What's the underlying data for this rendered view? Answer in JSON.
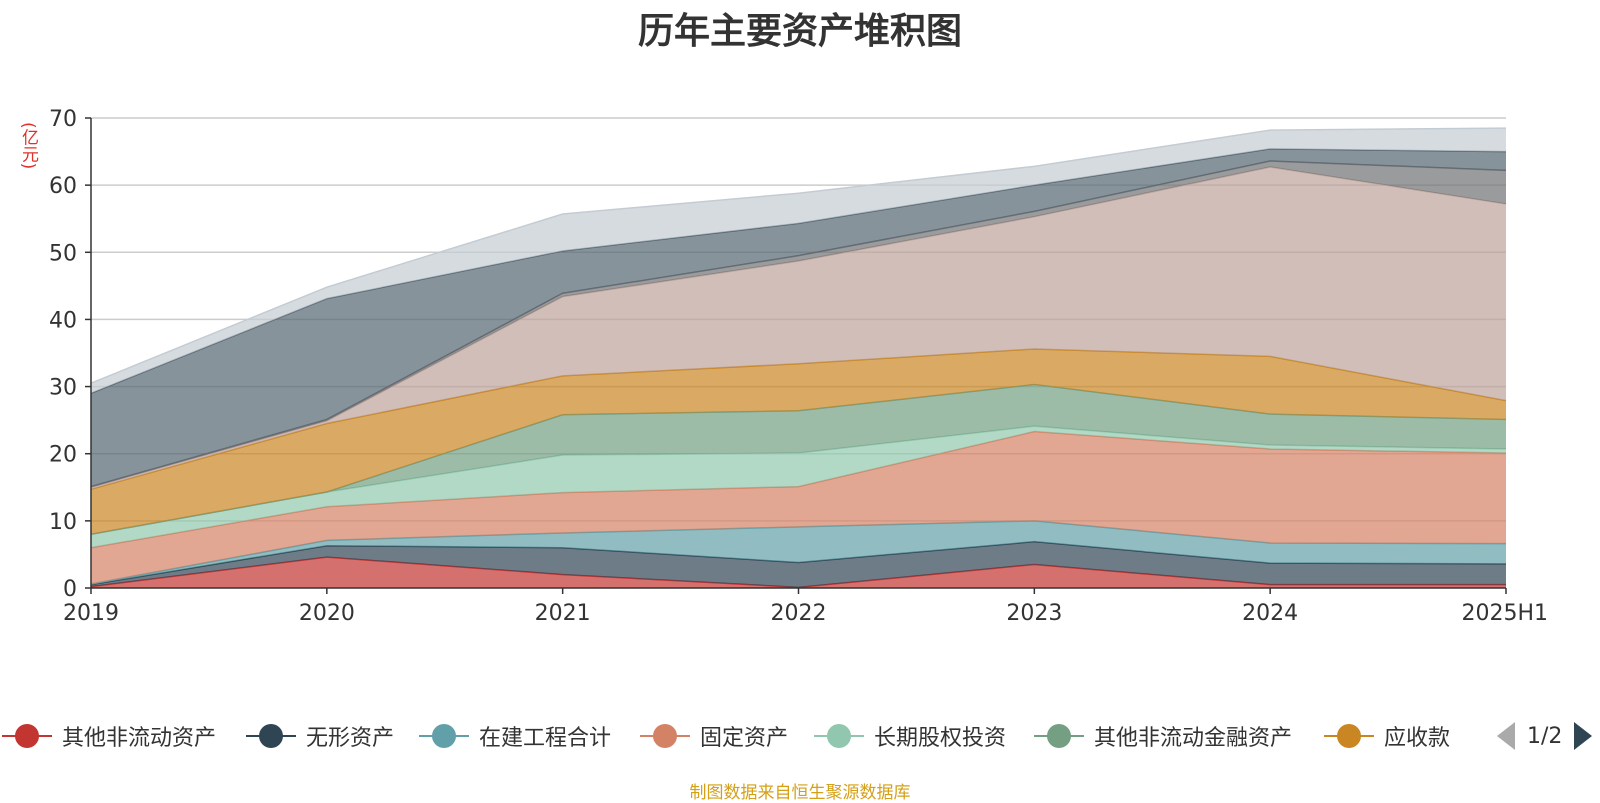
{
  "chart_data": {
    "type": "area",
    "title": "历年主要资产堆积图",
    "unit_label": "(亿元)",
    "ylim": [
      0,
      70
    ],
    "yticks": [
      0,
      10,
      20,
      30,
      40,
      50,
      60,
      70
    ],
    "categories": [
      "2019",
      "2020",
      "2021",
      "2022",
      "2023",
      "2024",
      "2025H1"
    ],
    "stacked": true,
    "grid": true,
    "legend_position": "bottom",
    "series": [
      {
        "name": "其他非流动资产",
        "color": "#c23531",
        "values": [
          0.2,
          4.6,
          2.0,
          0.1,
          3.5,
          0.5,
          0.5
        ]
      },
      {
        "name": "无形资产",
        "color": "#2f4554",
        "values": [
          0.3,
          1.7,
          4.0,
          3.7,
          3.4,
          3.2,
          3.1
        ]
      },
      {
        "name": "在建工程合计",
        "color": "#61a0a8",
        "values": [
          0.1,
          0.8,
          2.2,
          5.3,
          3.1,
          3.0,
          3.0
        ]
      },
      {
        "name": "固定资产",
        "color": "#d48265",
        "values": [
          5.4,
          5.0,
          6.0,
          6.0,
          13.3,
          14.0,
          13.5
        ]
      },
      {
        "name": "长期股权投资",
        "color": "#91c7ae",
        "values": [
          2.0,
          2.2,
          5.6,
          5.0,
          0.8,
          0.6,
          0.6
        ]
      },
      {
        "name": "其他非流动金融资产",
        "color": "#749f83",
        "values": [
          0.0,
          0.0,
          6.0,
          6.3,
          6.2,
          4.6,
          4.4
        ]
      },
      {
        "name": "应收款",
        "color": "#ca8622",
        "values": [
          6.7,
          10.2,
          5.8,
          7.0,
          5.3,
          8.6,
          2.8
        ]
      },
      {
        "name": "",
        "color": "#bda29a",
        "values": [
          0.3,
          0.4,
          11.8,
          15.3,
          19.7,
          28.2,
          29.3
        ]
      },
      {
        "name": "",
        "color": "#6e7074",
        "values": [
          0.1,
          0.2,
          0.5,
          0.8,
          0.8,
          0.9,
          5.0
        ]
      },
      {
        "name": "",
        "color": "#546570",
        "values": [
          13.9,
          18.0,
          6.3,
          4.8,
          3.9,
          1.8,
          2.8
        ]
      },
      {
        "name": "",
        "color": "#c4ccd3",
        "values": [
          1.5,
          1.7,
          5.5,
          4.5,
          2.8,
          2.8,
          3.5
        ]
      }
    ],
    "source_note": "制图数据来自恒生聚源数据库"
  },
  "legend": {
    "items": [
      "其他非流动资产",
      "无形资产",
      "在建工程合计",
      "固定资产",
      "长期股权投资",
      "其他非流动金融资产",
      "应收款"
    ],
    "pager_text": "1/2"
  }
}
